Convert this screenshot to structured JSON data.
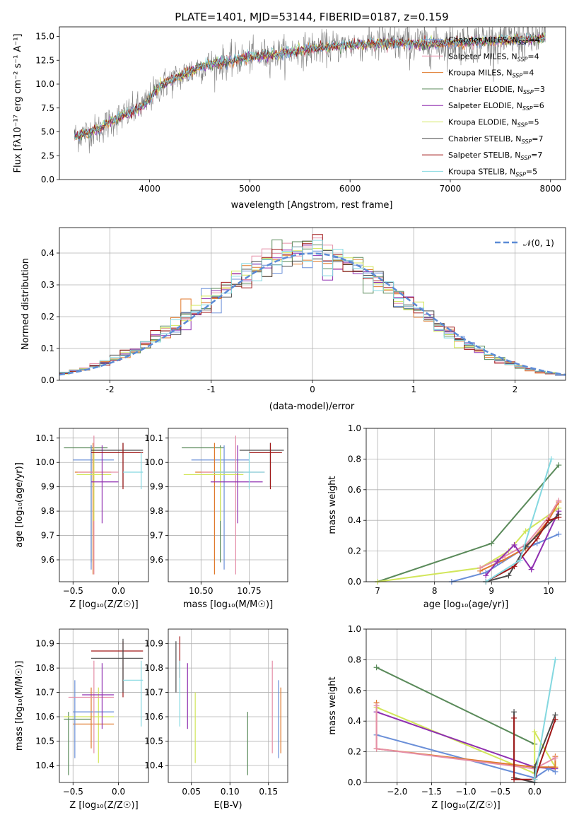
{
  "colors": {
    "Chabrier MILES": "#6a8fd8",
    "Salpeter MILES": "#e58fa8",
    "Kroupa MILES": "#e07a2c",
    "Chabrier ELODIE": "#5a8a5a",
    "Salpeter ELODIE": "#8f2fb0",
    "Kroupa ELODIE": "#d2e65a",
    "Chabrier STELIB": "#4a4a4a",
    "Salpeter STELIB": "#a01818",
    "Kroupa STELIB": "#84d8e0",
    "data": "#808080",
    "normal": "#5b8bd6"
  },
  "chart_data": [
    {
      "id": "spectrum",
      "type": "line",
      "title": "PLATE=1401, MJD=53144, FIBERID=0187, z=0.159",
      "xlabel": "wavelength [Angstrom, rest frame]",
      "ylabel": "Flux [fλ10⁻¹⁷ erg cm⁻² s⁻¹ A⁻¹]",
      "xlim": [
        3100,
        8150
      ],
      "ylim": [
        0,
        16
      ],
      "xticks": [
        4000,
        5000,
        6000,
        7000,
        8000
      ],
      "yticks": [
        0.0,
        2.5,
        5.0,
        7.5,
        10.0,
        12.5,
        15.0
      ],
      "continuum": [
        [
          3250,
          4.5
        ],
        [
          3500,
          5.3
        ],
        [
          3650,
          6.3
        ],
        [
          3800,
          7.0
        ],
        [
          3950,
          7.8
        ],
        [
          4100,
          9.8
        ],
        [
          4300,
          10.8
        ],
        [
          4500,
          11.8
        ],
        [
          4700,
          12.2
        ],
        [
          5000,
          12.8
        ],
        [
          5300,
          13.2
        ],
        [
          5600,
          13.7
        ],
        [
          6000,
          14.1
        ],
        [
          6400,
          14.3
        ],
        [
          6800,
          14.2
        ],
        [
          7200,
          14.4
        ],
        [
          7600,
          14.6
        ],
        [
          7950,
          14.8
        ]
      ],
      "legend_location": "upper right",
      "legend": [
        {
          "model": "Chabrier MILES",
          "n": "4"
        },
        {
          "model": "Salpeter MILES",
          "n": "4"
        },
        {
          "model": "Kroupa MILES",
          "n": "4"
        },
        {
          "model": "Chabrier ELODIE",
          "n": "3"
        },
        {
          "model": "Salpeter ELODIE",
          "n": "6"
        },
        {
          "model": "Kroupa ELODIE",
          "n": "5"
        },
        {
          "model": "Chabrier STELIB",
          "n": "7"
        },
        {
          "model": "Salpeter STELIB",
          "n": "7"
        },
        {
          "model": "Kroupa STELIB",
          "n": "5"
        }
      ],
      "legend_nssp_label": "N",
      "legend_nssp_sub": "SSP"
    },
    {
      "id": "residuals",
      "type": "histogram",
      "xlabel": "(data-model)/error",
      "ylabel": "Normed distribution",
      "xlim": [
        -2.5,
        2.5
      ],
      "ylim": [
        0,
        0.48
      ],
      "xticks": [
        -2,
        -1,
        0,
        1,
        2
      ],
      "yticks": [
        0.0,
        0.1,
        0.2,
        0.3,
        0.4
      ],
      "bin_width": 0.1,
      "gaussian_label": "𝒩(0, 1)",
      "grid": true,
      "legend_location": "upper right"
    },
    {
      "id": "age_vs_Z",
      "type": "errorbar",
      "xlabel": "Z [log₁₀(Z/Z☉)]",
      "ylabel": "age  [log₁₀(age/yr)]",
      "xlim": [
        -0.65,
        0.33
      ],
      "ylim": [
        9.51,
        10.14
      ],
      "xticks": [
        -0.5,
        0.0
      ],
      "xticklabels": [
        "−0.5",
        "0.0"
      ],
      "yticks": [
        9.6,
        9.7,
        9.8,
        9.9,
        10.0,
        10.1
      ],
      "points": [
        {
          "model": "Chabrier ELODIE",
          "x": -0.3,
          "xlo": -0.6,
          "xhi": -0.12,
          "y": 10.06,
          "ylo": 9.59,
          "yhi": 10.07
        },
        {
          "model": "Chabrier MILES",
          "x": -0.3,
          "xlo": -0.5,
          "xhi": -0.05,
          "y": 10.01,
          "ylo": 9.56,
          "yhi": 10.07
        },
        {
          "model": "Kroupa MILES",
          "x": -0.28,
          "xlo": -0.48,
          "xhi": -0.08,
          "y": 9.96,
          "ylo": 9.54,
          "yhi": 10.08
        },
        {
          "model": "Salpeter MILES",
          "x": -0.27,
          "xlo": -0.45,
          "xhi": 0.0,
          "y": 9.96,
          "ylo": 9.54,
          "yhi": 10.11
        },
        {
          "model": "Kroupa ELODIE",
          "x": -0.27,
          "xlo": -0.46,
          "xhi": -0.08,
          "y": 9.95,
          "ylo": 9.76,
          "yhi": 10.06
        },
        {
          "model": "Salpeter ELODIE",
          "x": -0.18,
          "xlo": -0.3,
          "xhi": 0.0,
          "y": 9.92,
          "ylo": 9.75,
          "yhi": 10.07
        },
        {
          "model": "Chabrier STELIB",
          "x": 0.05,
          "xlo": -0.3,
          "xhi": 0.27,
          "y": 10.05,
          "ylo": 9.9,
          "yhi": 10.08
        },
        {
          "model": "Salpeter STELIB",
          "x": 0.05,
          "xlo": -0.3,
          "xhi": 0.27,
          "y": 10.04,
          "ylo": 9.89,
          "yhi": 10.08
        },
        {
          "model": "Kroupa STELIB",
          "x": 0.25,
          "xlo": 0.05,
          "xhi": 0.27,
          "y": 9.96,
          "ylo": 9.89,
          "yhi": 10.04
        }
      ]
    },
    {
      "id": "age_vs_mass",
      "type": "errorbar",
      "xlabel": "mass [log₁₀(M/M☉)]",
      "ylabel": "",
      "xlim": [
        10.33,
        10.95
      ],
      "ylim": [
        9.51,
        10.14
      ],
      "xticks": [
        10.5,
        10.75
      ],
      "xticklabels": [
        "10.50",
        "10.75"
      ],
      "yticks": [
        9.6,
        9.7,
        9.8,
        9.9,
        10.0,
        10.1
      ],
      "points": [
        {
          "model": "Chabrier ELODIE",
          "x": 10.6,
          "xlo": 10.4,
          "xhi": 10.62,
          "y": 10.06,
          "ylo": 9.59,
          "yhi": 10.07
        },
        {
          "model": "Chabrier MILES",
          "x": 10.62,
          "xlo": 10.45,
          "xhi": 10.75,
          "y": 10.01,
          "ylo": 9.56,
          "yhi": 10.07
        },
        {
          "model": "Kroupa MILES",
          "x": 10.57,
          "xlo": 10.47,
          "xhi": 10.72,
          "y": 9.96,
          "ylo": 9.54,
          "yhi": 10.08
        },
        {
          "model": "Salpeter MILES",
          "x": 10.68,
          "xlo": 10.5,
          "xhi": 10.83,
          "y": 9.96,
          "ylo": 9.54,
          "yhi": 10.11
        },
        {
          "model": "Kroupa ELODIE",
          "x": 10.6,
          "xlo": 10.41,
          "xhi": 10.72,
          "y": 9.95,
          "ylo": 9.76,
          "yhi": 10.06
        },
        {
          "model": "Salpeter ELODIE",
          "x": 10.69,
          "xlo": 10.55,
          "xhi": 10.82,
          "y": 9.92,
          "ylo": 9.75,
          "yhi": 10.07
        },
        {
          "model": "Chabrier STELIB",
          "x": 10.86,
          "xlo": 10.7,
          "xhi": 10.93,
          "y": 10.05,
          "ylo": 9.9,
          "yhi": 10.08
        },
        {
          "model": "Salpeter STELIB",
          "x": 10.86,
          "xlo": 10.75,
          "xhi": 10.92,
          "y": 10.04,
          "ylo": 9.89,
          "yhi": 10.08
        },
        {
          "model": "Kroupa STELIB",
          "x": 10.75,
          "xlo": 10.56,
          "xhi": 10.83,
          "y": 9.96,
          "ylo": 9.89,
          "yhi": 10.04
        }
      ]
    },
    {
      "id": "weight_vs_age",
      "type": "line",
      "xlabel": "age  [log₁₀(age/yr)]",
      "ylabel": "mass weight",
      "xlim": [
        6.8,
        10.3
      ],
      "ylim": [
        0,
        1
      ],
      "xticks": [
        7,
        8,
        9,
        10
      ],
      "yticks": [
        0.0,
        0.2,
        0.4,
        0.6,
        0.8,
        1.0
      ],
      "yticklabels": [
        "0.0",
        "0.2",
        "0.4",
        "0.6",
        "0.8",
        "1.0"
      ],
      "grid": true,
      "series": [
        {
          "model": "Chabrier ELODIE",
          "points": [
            [
              7.0,
              0.0
            ],
            [
              9.0,
              0.25
            ],
            [
              10.18,
              0.76
            ]
          ]
        },
        {
          "model": "Kroupa ELODIE",
          "points": [
            [
              7.0,
              0.0
            ],
            [
              8.8,
              0.09
            ],
            [
              9.3,
              0.2
            ],
            [
              9.6,
              0.33
            ],
            [
              10.18,
              0.48
            ]
          ]
        },
        {
          "model": "Chabrier MILES",
          "points": [
            [
              8.3,
              0.0
            ],
            [
              8.9,
              0.06
            ],
            [
              9.5,
              0.2
            ],
            [
              9.8,
              0.25
            ],
            [
              10.18,
              0.31
            ]
          ]
        },
        {
          "model": "Kroupa MILES",
          "points": [
            [
              8.8,
              0.07
            ],
            [
              9.2,
              0.14
            ],
            [
              9.6,
              0.22
            ],
            [
              10.0,
              0.4
            ],
            [
              10.18,
              0.52
            ]
          ]
        },
        {
          "model": "Salpeter MILES",
          "points": [
            [
              8.8,
              0.09
            ],
            [
              9.2,
              0.16
            ],
            [
              9.6,
              0.24
            ],
            [
              10.0,
              0.42
            ],
            [
              10.18,
              0.53
            ]
          ]
        },
        {
          "model": "Salpeter ELODIE",
          "points": [
            [
              8.9,
              0.04
            ],
            [
              9.1,
              0.13
            ],
            [
              9.4,
              0.24
            ],
            [
              9.7,
              0.08
            ],
            [
              10.18,
              0.46
            ]
          ]
        },
        {
          "model": "Chabrier STELIB",
          "points": [
            [
              8.9,
              0.0
            ],
            [
              9.3,
              0.04
            ],
            [
              9.6,
              0.23
            ],
            [
              10.18,
              0.44
            ]
          ]
        },
        {
          "model": "Salpeter STELIB",
          "points": [
            [
              8.9,
              0.0
            ],
            [
              9.4,
              0.1
            ],
            [
              9.8,
              0.28
            ],
            [
              10.0,
              0.4
            ],
            [
              10.18,
              0.42
            ]
          ]
        },
        {
          "model": "Kroupa STELIB",
          "points": [
            [
              8.9,
              0.0
            ],
            [
              9.5,
              0.14
            ],
            [
              10.05,
              0.8
            ]
          ]
        }
      ]
    },
    {
      "id": "mass_vs_Z",
      "type": "errorbar",
      "xlabel": "Z [log₁₀(Z/Z☉)]",
      "ylabel": "mass [log₁₀(M/M☉)]",
      "xlim": [
        -0.65,
        0.33
      ],
      "ylim": [
        10.33,
        10.96
      ],
      "xticks": [
        -0.5,
        0.0
      ],
      "xticklabels": [
        "−0.5",
        "0.0"
      ],
      "yticks": [
        10.4,
        10.5,
        10.6,
        10.7,
        10.8,
        10.9
      ],
      "points": [
        {
          "model": "Chabrier ELODIE",
          "x": -0.55,
          "xlo": -0.6,
          "xhi": -0.3,
          "y": 10.59,
          "ylo": 10.36,
          "yhi": 10.62
        },
        {
          "model": "Kroupa ELODIE",
          "x": -0.22,
          "xlo": -0.6,
          "xhi": -0.05,
          "y": 10.6,
          "ylo": 10.41,
          "yhi": 10.72
        },
        {
          "model": "Kroupa MILES",
          "x": -0.3,
          "xlo": -0.5,
          "xhi": -0.05,
          "y": 10.57,
          "ylo": 10.47,
          "yhi": 10.72
        },
        {
          "model": "Chabrier MILES",
          "x": -0.48,
          "xlo": -0.5,
          "xhi": -0.05,
          "y": 10.62,
          "ylo": 10.43,
          "yhi": 10.75
        },
        {
          "model": "Salpeter MILES",
          "x": -0.27,
          "xlo": -0.55,
          "xhi": -0.05,
          "y": 10.68,
          "ylo": 10.45,
          "yhi": 10.83
        },
        {
          "model": "Salpeter ELODIE",
          "x": -0.18,
          "xlo": -0.4,
          "xhi": -0.05,
          "y": 10.69,
          "ylo": 10.55,
          "yhi": 10.82
        },
        {
          "model": "Salpeter STELIB",
          "x": 0.05,
          "xlo": -0.3,
          "xhi": 0.27,
          "y": 10.87,
          "ylo": 10.68,
          "yhi": 10.91
        },
        {
          "model": "Chabrier STELIB",
          "x": 0.05,
          "xlo": -0.3,
          "xhi": 0.27,
          "y": 10.84,
          "ylo": 10.7,
          "yhi": 10.92
        },
        {
          "model": "Kroupa STELIB",
          "x": 0.25,
          "xlo": 0.05,
          "xhi": 0.27,
          "y": 10.75,
          "ylo": 10.56,
          "yhi": 10.83
        }
      ]
    },
    {
      "id": "mass_vs_ebv",
      "type": "errorbar",
      "xlabel": "E(B-V)",
      "ylabel": "",
      "xlim": [
        0.02,
        0.175
      ],
      "ylim": [
        10.33,
        10.96
      ],
      "xticks": [
        0.05,
        0.1,
        0.15
      ],
      "xticklabels": [
        "0.05",
        "0.10",
        "0.15"
      ],
      "yticks": [
        10.4,
        10.5,
        10.6,
        10.7,
        10.8,
        10.9
      ],
      "points": [
        {
          "model": "Chabrier STELIB",
          "x": 0.03,
          "y": 10.8,
          "ylo": 10.7,
          "yhi": 10.91
        },
        {
          "model": "Salpeter STELIB",
          "x": 0.035,
          "y": 10.87,
          "ylo": 10.76,
          "yhi": 10.93
        },
        {
          "model": "Kroupa STELIB",
          "x": 0.035,
          "y": 10.72,
          "ylo": 10.56,
          "yhi": 10.83
        },
        {
          "model": "Salpeter ELODIE",
          "x": 0.045,
          "y": 10.7,
          "ylo": 10.55,
          "yhi": 10.82
        },
        {
          "model": "Kroupa ELODIE",
          "x": 0.055,
          "y": 10.55,
          "ylo": 10.41,
          "yhi": 10.7
        },
        {
          "model": "Chabrier ELODIE",
          "x": 0.123,
          "y": 10.5,
          "ylo": 10.36,
          "yhi": 10.62
        },
        {
          "model": "Salpeter MILES",
          "x": 0.155,
          "y": 10.69,
          "ylo": 10.45,
          "yhi": 10.83
        },
        {
          "model": "Chabrier MILES",
          "x": 0.163,
          "y": 10.6,
          "ylo": 10.43,
          "yhi": 10.75
        },
        {
          "model": "Kroupa MILES",
          "x": 0.166,
          "y": 10.57,
          "ylo": 10.45,
          "yhi": 10.72
        }
      ]
    },
    {
      "id": "weight_vs_Z",
      "type": "line",
      "xlabel": "Z [log₁₀(Z/Z☉)]",
      "ylabel": "mass weight",
      "xlim": [
        -2.45,
        0.45
      ],
      "ylim": [
        0,
        1
      ],
      "xticks": [
        -2.0,
        -1.5,
        -1.0,
        -0.5,
        0.0
      ],
      "xticklabels": [
        "−2.0",
        "−1.5",
        "−1.0",
        "−0.5",
        "0.0"
      ],
      "yticks": [
        0.0,
        0.2,
        0.4,
        0.6,
        0.8,
        1.0
      ],
      "yticklabels": [
        "0.0",
        "0.2",
        "0.4",
        "0.6",
        "0.8",
        "1.0"
      ],
      "grid": true,
      "series": [
        {
          "model": "Chabrier ELODIE",
          "points": [
            [
              -2.3,
              0.75
            ],
            [
              0.0,
              0.25
            ]
          ]
        },
        {
          "model": "Kroupa ELODIE",
          "points": [
            [
              -2.3,
              0.49
            ],
            [
              0.0,
              0.06
            ],
            [
              0.0,
              0.33
            ],
            [
              0.3,
              0.1
            ]
          ]
        },
        {
          "model": "Salpeter ELODIE",
          "points": [
            [
              -2.3,
              0.46
            ],
            [
              0.0,
              0.1
            ],
            [
              0.3,
              0.09
            ]
          ]
        },
        {
          "model": "Chabrier MILES",
          "points": [
            [
              -2.3,
              0.31
            ],
            [
              0.0,
              0.03
            ],
            [
              0.2,
              0.09
            ],
            [
              0.3,
              0.07
            ]
          ]
        },
        {
          "model": "Kroupa MILES",
          "points": [
            [
              -2.3,
              0.52
            ],
            [
              -2.3,
              0.22
            ],
            [
              0.0,
              0.1
            ],
            [
              0.3,
              0.1
            ],
            [
              0.3,
              0.17
            ]
          ]
        },
        {
          "model": "Salpeter MILES",
          "points": [
            [
              -2.3,
              0.5
            ],
            [
              -2.3,
              0.22
            ],
            [
              0.0,
              0.09
            ],
            [
              0.3,
              0.16
            ]
          ]
        },
        {
          "model": "Chabrier STELIB",
          "points": [
            [
              -0.3,
              0.46
            ],
            [
              -0.3,
              0.03
            ],
            [
              0.0,
              0.0
            ],
            [
              0.0,
              0.1
            ],
            [
              0.3,
              0.44
            ]
          ]
        },
        {
          "model": "Salpeter STELIB",
          "points": [
            [
              -0.3,
              0.42
            ],
            [
              -0.3,
              0.02
            ],
            [
              0.0,
              0.02
            ],
            [
              0.3,
              0.41
            ]
          ]
        },
        {
          "model": "Kroupa STELIB",
          "points": [
            [
              0.0,
              0.02
            ],
            [
              0.3,
              0.8
            ]
          ]
        }
      ]
    }
  ]
}
